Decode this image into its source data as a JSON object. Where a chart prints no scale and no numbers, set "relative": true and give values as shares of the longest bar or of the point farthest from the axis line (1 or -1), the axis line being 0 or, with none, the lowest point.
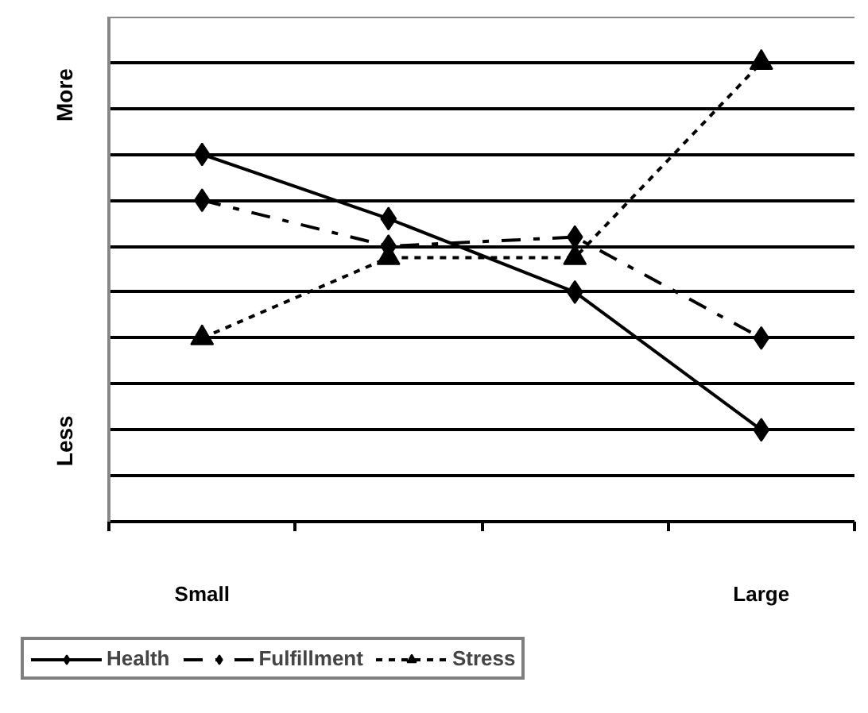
{
  "chart_data": {
    "type": "line",
    "relative": true,
    "categories": [
      "Small",
      null,
      null,
      "Large"
    ],
    "series": [
      {
        "name": "Health",
        "color": "#000000",
        "marker": "diamond",
        "line_style": "solid",
        "values": [
          0.8,
          0.66,
          0.5,
          0.2
        ]
      },
      {
        "name": "Fulfillment",
        "color": "#000000",
        "marker": "diamond",
        "line_style": "dashed",
        "values": [
          0.7,
          0.6,
          0.62,
          0.4
        ]
      },
      {
        "name": "Stress",
        "color": "#000000",
        "marker": "triangle",
        "line_style": "dotted",
        "values": [
          0.4,
          0.575,
          0.575,
          1.0
        ]
      }
    ],
    "annotations": [
      "More",
      "Less"
    ],
    "grid": "y",
    "legend": "bottom"
  }
}
